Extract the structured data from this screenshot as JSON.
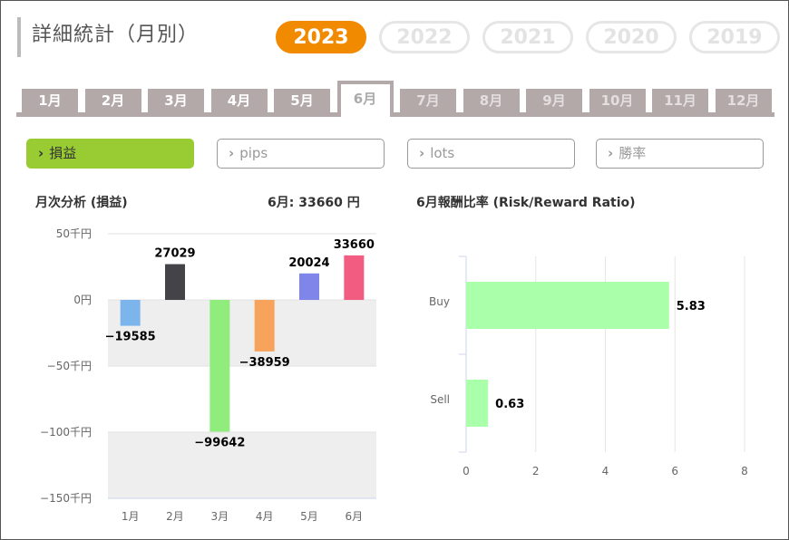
{
  "page": {
    "title": "詳細統計（月別）"
  },
  "years": [
    "2023",
    "2022",
    "2021",
    "2020",
    "2019"
  ],
  "active_year": "2023",
  "months": [
    "1月",
    "2月",
    "3月",
    "4月",
    "5月",
    "6月",
    "7月",
    "8月",
    "9月",
    "10月",
    "11月",
    "12月"
  ],
  "active_month": "6月",
  "metrics": [
    "損益",
    "pips",
    "lots",
    "勝率"
  ],
  "active_metric": "損益",
  "colors": {
    "accent": "#f28a00",
    "metric_active": "#99cc33",
    "tab": "#b3a9a8"
  },
  "chart_data": [
    {
      "type": "bar",
      "title": "月次分析 (損益)",
      "summary": "6月:  33660 円",
      "categories": [
        "1月",
        "2月",
        "3月",
        "4月",
        "5月",
        "6月"
      ],
      "values": [
        -19585,
        27029,
        -99642,
        -38959,
        20024,
        33660
      ],
      "value_labels": [
        "−19585",
        "27029",
        "−99642",
        "−38959",
        "20024",
        "33660"
      ],
      "bar_colors": [
        "#7cb5ec",
        "#434348",
        "#90ed7d",
        "#f7a35c",
        "#8085e9",
        "#f15c80"
      ],
      "y_ticks": [
        50000,
        0,
        -50000,
        -100000,
        -150000
      ],
      "y_tick_labels": [
        "50千円",
        "0円",
        "−50千円",
        "−100千円",
        "−150千円"
      ],
      "ylim": [
        -150000,
        50000
      ],
      "alternating_bands": true
    },
    {
      "type": "bar",
      "orientation": "horizontal",
      "title": "6月報酬比率 (Risk/Reward Ratio)",
      "categories": [
        "Buy",
        "Sell"
      ],
      "values": [
        5.83,
        0.63
      ],
      "value_labels": [
        "5.83",
        "0.63"
      ],
      "bar_color": "#aaffaa",
      "x_ticks": [
        0,
        2,
        4,
        6,
        8
      ],
      "x_tick_labels": [
        "0",
        "2",
        "4",
        "6",
        "8"
      ],
      "xlim": [
        0,
        8
      ],
      "grid": true
    }
  ]
}
